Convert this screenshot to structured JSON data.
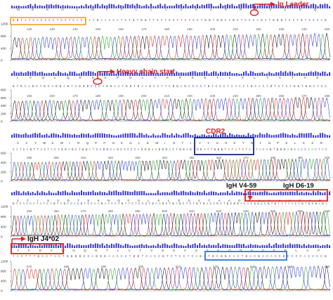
{
  "colors": {
    "A": "#2e9e2e",
    "C": "#2c3ccc",
    "G": "#1a1a1a",
    "T": "#d42a2a",
    "quality_bar": "#3a3ad6",
    "annotation_red": "#e02020",
    "annotation_orange": "#f0a020",
    "annotation_navy": "#1a2a7a",
    "annotation_blue": "#2a7ad0"
  },
  "panels": [
    {
      "id": "panel-1",
      "y_ticks": [
        "1200",
        "800",
        "400",
        "0"
      ],
      "amino_acids": "M E K H L W F F L L L V A A P R W V L S Q",
      "bases": "GGTATCACCCCTCCTCACCATGAAACATCTGTGGTTCTTCCTTCTCCTGGTGGCAGCTCCCAGATGGGTCCTGTCCCAG",
      "position_labels": [
        "120",
        "130",
        "140",
        "150",
        "160",
        "170",
        "180",
        "190",
        "200",
        "210",
        "220",
        "230",
        "240",
        "250"
      ]
    },
    {
      "id": "panel-2",
      "y_ticks": [
        "800",
        "600",
        "400",
        "200",
        "0"
      ],
      "amino_acids": "L V Q L Q E S G P G L V K P S E T L S L T C T V S",
      "bases": "GTGCAGCTGCAGGAGTCGGGCCCAGGACTGGTGAAGCCTTCGGAGACCCTGTCCCTCACCTGCACTGTCTCTGGTGGCTCC",
      "position_labels": [
        "150",
        "160",
        "170",
        "180",
        "190",
        "200",
        "210",
        "220",
        "230",
        "240",
        "250",
        "260",
        "270",
        "280"
      ]
    },
    {
      "id": "panel-3",
      "y_ticks": [
        "600",
        "400",
        "200",
        "0"
      ],
      "amino_acids": "C V Y W S W I R Q P P G K G L E W I G Y I Y Y S G S T N Y N P S L K S R",
      "bases": "CATCAGTTACTACTGGAGCTGGATCCGGCAGCCCCCAGGGAAGGGACTGGAGTGGATTGGGTATATCTATTACAGTGGGAGCACCAACTAC",
      "position_labels": [
        "290",
        "300",
        "310",
        "320",
        "330",
        "340",
        "350",
        "360",
        "370",
        "380",
        "390",
        "400"
      ]
    },
    {
      "id": "panel-4",
      "y_ticks": [
        "1200",
        "800",
        "400",
        "0"
      ],
      "amino_acids": "V T I S V D T S K N Q F S L K L S S V T A A D T A V Y Y C A R",
      "bases": "GTCACCATATCAGTAGACACGTCCAAGAACCAGTTCTCCCTGAAGCTGAGCTCTGTGACCGCTGCGGACACGGCCGTGTATTACTGTGCGAGA",
      "position_labels": [
        "450",
        "460",
        "470",
        "480",
        "490",
        "500",
        "510",
        "520",
        "530",
        "540",
        "550",
        "560"
      ]
    },
    {
      "id": "panel-5",
      "y_ticks": [
        "1200",
        "800",
        "400",
        "0"
      ],
      "amino_acids": "Y F D Y W G Q G T L V T V S S A S T K G P S V F P L A P",
      "bases": "TACTTTGACTACTGGGGCCAGGGAACCCTGGTCACCGTCTCCTCAGCTGCGGCACTGACGCCACCGCCCCACCCCG",
      "position_labels": [
        "570",
        "580",
        "590",
        "600",
        "610",
        "620",
        "630",
        "640",
        "650"
      ]
    }
  ],
  "annotations": {
    "ig_leader": "Ig Leader",
    "heavy_chain_start": "Heavy chain start",
    "cdr2": "CDR2",
    "igh_v4_59": "IgH V4-59",
    "igh_d6_19": "IgH D6-19",
    "igh_j4_02": "IgH J4*02"
  }
}
